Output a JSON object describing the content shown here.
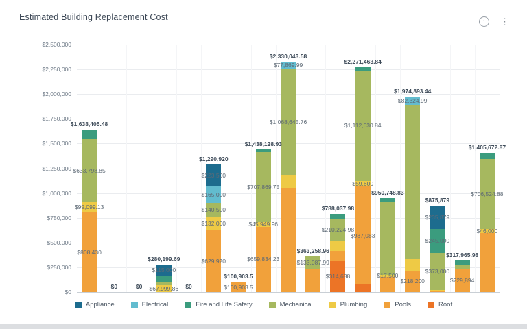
{
  "header": {
    "title": "Estimated Building Replacement Cost",
    "icons": [
      "info-icon",
      "kebab-menu-icon"
    ],
    "kebab_glyph": "⋮",
    "info_glyph": "i"
  },
  "chart_data": {
    "type": "stacked-bar",
    "title": "Estimated Building Replacement Cost",
    "ylabel": "",
    "xlabel": "",
    "grid": true,
    "legend_position": "bottom",
    "y_axis": {
      "min": 0,
      "max": 2500000,
      "tick_interval": 250000,
      "tick_labels": [
        "$2,500,000",
        "$2,250,000",
        "$2,000,000",
        "$1,750,000",
        "$1,500,000",
        "$1,250,000",
        "$1,000,000",
        "$750,000",
        "$500,000",
        "$250,000",
        "$0"
      ]
    },
    "legend": [
      {
        "name": "Appliance",
        "color": "#1d6c8e"
      },
      {
        "name": "Electrical",
        "color": "#62bccf"
      },
      {
        "name": "Fire and Life Safety",
        "color": "#3b9c7e"
      },
      {
        "name": "Mechanical",
        "color": "#a6b85f"
      },
      {
        "name": "Plumbing",
        "color": "#eeca45"
      },
      {
        "name": "Pools",
        "color": "#f1a13b"
      },
      {
        "name": "Roof",
        "color": "#ec7426"
      }
    ],
    "bars": [
      {
        "total": 1638405.48,
        "total_label": "$1,638,405.48",
        "segments_top_to_bottom": [
          {
            "series": "Fire and Life Safety",
            "value": 97077.5
          },
          {
            "series": "Mechanical",
            "value": 633798.85,
            "label": "$633,798.85"
          },
          {
            "series": "Plumbing",
            "value": 99099.13,
            "label": "$99,099.13"
          },
          {
            "series": "Pools",
            "value": 808430,
            "label": "$808,430"
          }
        ]
      },
      {
        "total": 0,
        "total_label": "$0",
        "segments_top_to_bottom": []
      },
      {
        "total": 0,
        "total_label": "$0",
        "segments_top_to_bottom": []
      },
      {
        "total": 280199.69,
        "total_label": "$280,199.69",
        "segments_top_to_bottom": [
          {
            "series": "Appliance",
            "value": 115000,
            "label": "$115,000"
          },
          {
            "series": "Fire and Life Safety",
            "value": 60000
          },
          {
            "series": "Mechanical",
            "value": 37199.83
          },
          {
            "series": "Plumbing",
            "value": 67999.86,
            "label": "$67,999.86"
          }
        ]
      },
      {
        "total": 0,
        "total_label": "$0",
        "segments_top_to_bottom": []
      },
      {
        "total": 1290920,
        "total_label": "$1,290,920",
        "segments_top_to_bottom": [
          {
            "series": "Appliance",
            "value": 223500,
            "label": "$223,500"
          },
          {
            "series": "Electrical",
            "value": 165000,
            "label": "$165,000"
          },
          {
            "series": "Mechanical",
            "value": 140500,
            "label": "$140,500"
          },
          {
            "series": "Plumbing",
            "value": 132000,
            "label": "$132,000"
          },
          {
            "series": "Pools",
            "value": 629920,
            "label": "$629,920"
          }
        ]
      },
      {
        "total": 100903.5,
        "total_label": "$100,903.5",
        "segments_top_to_bottom": [
          {
            "series": "Pools",
            "value": 100903.5,
            "label": "$100,903.5"
          }
        ]
      },
      {
        "total": 1438128.93,
        "total_label": "$1,438,128.93",
        "segments_top_to_bottom": [
          {
            "series": "Fire and Life Safety",
            "value": 24474.99
          },
          {
            "series": "Mechanical",
            "value": 707869.75,
            "label": "$707,869.75"
          },
          {
            "series": "Plumbing",
            "value": 45949.96,
            "label": "$45,949.96"
          },
          {
            "series": "Pools",
            "value": 659834.23,
            "label": "$659,834.23"
          }
        ]
      },
      {
        "total": 2330043.58,
        "total_label": "$2,330,043.58",
        "segments_top_to_bottom": [
          {
            "series": "Electrical",
            "value": 77869.99,
            "label": "$77,869.99"
          },
          {
            "series": "Mechanical",
            "value": 1068645.76,
            "label": "$1,068,645.76"
          },
          {
            "series": "Plumbing",
            "value": 130000
          },
          {
            "series": "Pools",
            "value": 1053527.83
          }
        ]
      },
      {
        "total": 363258.96,
        "total_label": "$363,258.96",
        "segments_top_to_bottom": [
          {
            "series": "Mechanical",
            "value": 133087.99,
            "label": "$133,087.99"
          },
          {
            "series": "Pools",
            "value": 230170.97
          }
        ]
      },
      {
        "total": 788037.98,
        "total_label": "$788,037.98",
        "segments_top_to_bottom": [
          {
            "series": "Fire and Life Safety",
            "value": 55000
          },
          {
            "series": "Mechanical",
            "value": 210224.98,
            "label": "$210,224.98"
          },
          {
            "series": "Plumbing",
            "value": 110000
          },
          {
            "series": "Pools",
            "value": 98125
          },
          {
            "series": "Roof",
            "value": 314688,
            "label": "$314,688"
          }
        ]
      },
      {
        "total": 2271463.84,
        "total_label": "$2,271,463.84",
        "segments_top_to_bottom": [
          {
            "series": "Fire and Life Safety",
            "value": 35000
          },
          {
            "series": "Mechanical",
            "value": 1112630.84,
            "label": "$1,112,630.84"
          },
          {
            "series": "Plumbing",
            "value": 59600,
            "label": "$59,600"
          },
          {
            "series": "Pools",
            "value": 987083,
            "label": "$987,083"
          },
          {
            "series": "Roof",
            "value": 77150
          }
        ]
      },
      {
        "total": 950748.83,
        "total_label": "$950,748.83",
        "segments_top_to_bottom": [
          {
            "series": "Fire and Life Safety",
            "value": 35000
          },
          {
            "series": "Mechanical",
            "value": 743248.83
          },
          {
            "series": "Plumbing",
            "value": 17500,
            "label": "$17,500"
          },
          {
            "series": "Pools",
            "value": 155000
          }
        ]
      },
      {
        "total": 1974893.44,
        "total_label": "$1,974,893.44",
        "segments_top_to_bottom": [
          {
            "series": "Electrical",
            "value": 82324.99,
            "label": "$82,324.99"
          },
          {
            "series": "Mechanical",
            "value": 1560368.45
          },
          {
            "series": "Plumbing",
            "value": 114000
          },
          {
            "series": "Pools",
            "value": 218200,
            "label": "$218,200"
          }
        ]
      },
      {
        "total": 875879,
        "total_label": "$875,879",
        "segments_top_to_bottom": [
          {
            "series": "Appliance",
            "value": 235879,
            "label": "$235,879"
          },
          {
            "series": "Fire and Life Safety",
            "value": 245000,
            "label": "$245,000"
          },
          {
            "series": "Mechanical",
            "value": 373000,
            "label": "$373,000"
          },
          {
            "series": "Plumbing",
            "value": 12000
          },
          {
            "series": "Pools",
            "value": 10000
          }
        ]
      },
      {
        "total": 317965.98,
        "total_label": "$317,965.98",
        "segments_top_to_bottom": [
          {
            "series": "Fire and Life Safety",
            "value": 44000
          },
          {
            "series": "Mechanical",
            "value": 44071.98
          },
          {
            "series": "Pools",
            "value": 229894,
            "label": "$229,894"
          }
        ]
      },
      {
        "total": 1405672.87,
        "total_label": "$1,405,672.87",
        "segments_top_to_bottom": [
          {
            "series": "Fire and Life Safety",
            "value": 60000
          },
          {
            "series": "Mechanical",
            "value": 706524.88,
            "label": "$706,524.88"
          },
          {
            "series": "Plumbing",
            "value": 46000,
            "label": "$46,000"
          },
          {
            "series": "Pools",
            "value": 593147.99
          }
        ]
      }
    ]
  }
}
